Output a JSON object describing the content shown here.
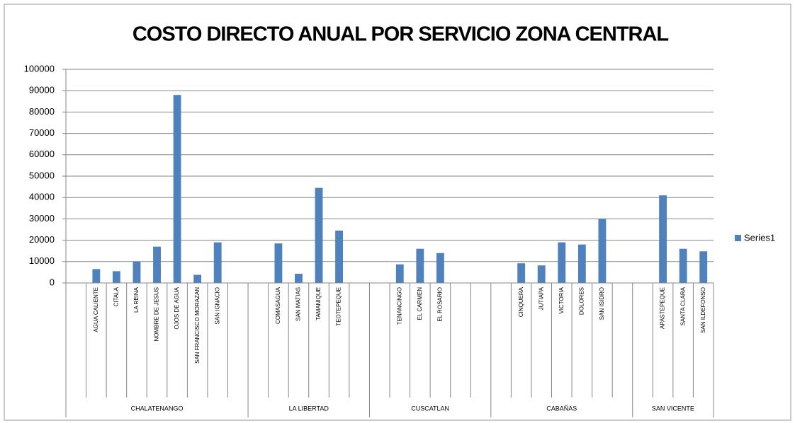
{
  "chart_data": {
    "type": "bar",
    "title": "COSTO DIRECTO ANUAL POR SERVICIO ZONA CENTRAL",
    "series_name": "Series1",
    "color": "#4f81bd",
    "ylim": [
      0,
      100000
    ],
    "yticks": [
      0,
      10000,
      20000,
      30000,
      40000,
      50000,
      60000,
      70000,
      80000,
      90000,
      100000
    ],
    "grid": true,
    "legend": "right",
    "groups": [
      {
        "name": "CHALATENANGO",
        "categories": [
          null,
          "AGUA CALIENTE",
          "CITALA",
          "LA REINA",
          "NOMBRE DE JESUS",
          "OJOS DE AGUA",
          "SAN FRANCISCO MORAZAN",
          "SAN IGNACIO",
          null
        ],
        "values": [
          null,
          6500,
          5500,
          10000,
          17000,
          88000,
          3800,
          19000,
          null
        ]
      },
      {
        "name": "LA LIBERTAD",
        "categories": [
          null,
          "COMASAGUA",
          "SAN MATIAS",
          "TAMANIQUE",
          "TEOTEPEQUE",
          null
        ],
        "values": [
          null,
          18500,
          4300,
          44500,
          24500,
          null
        ]
      },
      {
        "name": "CUSCATLAN",
        "categories": [
          null,
          "TENANCINGO",
          "EL CARMEN",
          "EL ROSARIO",
          null,
          null
        ],
        "values": [
          null,
          8700,
          16000,
          14000,
          null,
          null
        ]
      },
      {
        "name": "CABAÑAS",
        "categories": [
          null,
          "CINQUERA",
          "JUTIAPA",
          "VICTORIA",
          "DOLORES",
          "SAN ISIDRO",
          null
        ],
        "values": [
          null,
          9200,
          8200,
          19000,
          18000,
          30000,
          null
        ]
      },
      {
        "name": "SAN VICENTE",
        "categories": [
          null,
          "APASTEPEQUE",
          "SANTA CLARA",
          "SAN ILDEFONSO"
        ],
        "values": [
          null,
          41000,
          16000,
          14800
        ]
      }
    ]
  }
}
